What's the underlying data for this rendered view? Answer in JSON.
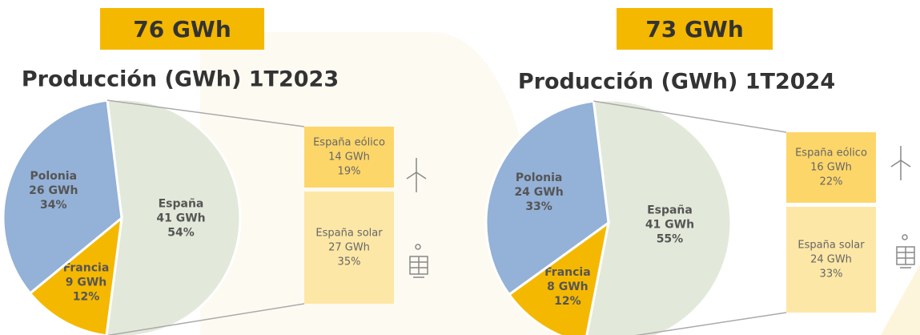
{
  "chart_data": [
    {
      "type": "pie",
      "total": "76 GWh",
      "title": "Producción (GWh) 1T2023",
      "categories": [
        "España",
        "Francia",
        "Polonia"
      ],
      "amounts": [
        "41 GWh",
        "9 GWh",
        "26 GWh"
      ],
      "values": [
        54,
        12,
        34
      ],
      "value_labels": [
        "54%",
        "12%",
        "34%"
      ],
      "colors": [
        "#e3e9da",
        "#f5b800",
        "#94b1d7"
      ],
      "breakdown": {
        "categories": [
          "España eólico",
          "España solar"
        ],
        "amounts": [
          "14 GWh",
          "27 GWh"
        ],
        "values": [
          19,
          35
        ],
        "value_labels": [
          "19%",
          "35%"
        ],
        "colors": [
          "#fdd66a",
          "#fde7a6"
        ]
      }
    },
    {
      "type": "pie",
      "total": "73 GWh",
      "title": "Producción (GWh) 1T2024",
      "categories": [
        "España",
        "Francia",
        "Polonia"
      ],
      "amounts": [
        "41 GWh",
        "8 GWh",
        "24 GWh"
      ],
      "values": [
        55,
        12,
        33
      ],
      "value_labels": [
        "55%",
        "12%",
        "33%"
      ],
      "colors": [
        "#e3e9da",
        "#f5b800",
        "#94b1d7"
      ],
      "breakdown": {
        "categories": [
          "España eólico",
          "España solar"
        ],
        "amounts": [
          "16 GWh",
          "24 GWh"
        ],
        "values": [
          22,
          33
        ],
        "value_labels": [
          "22%",
          "33%"
        ],
        "colors": [
          "#fdd66a",
          "#fde7a6"
        ]
      }
    }
  ]
}
